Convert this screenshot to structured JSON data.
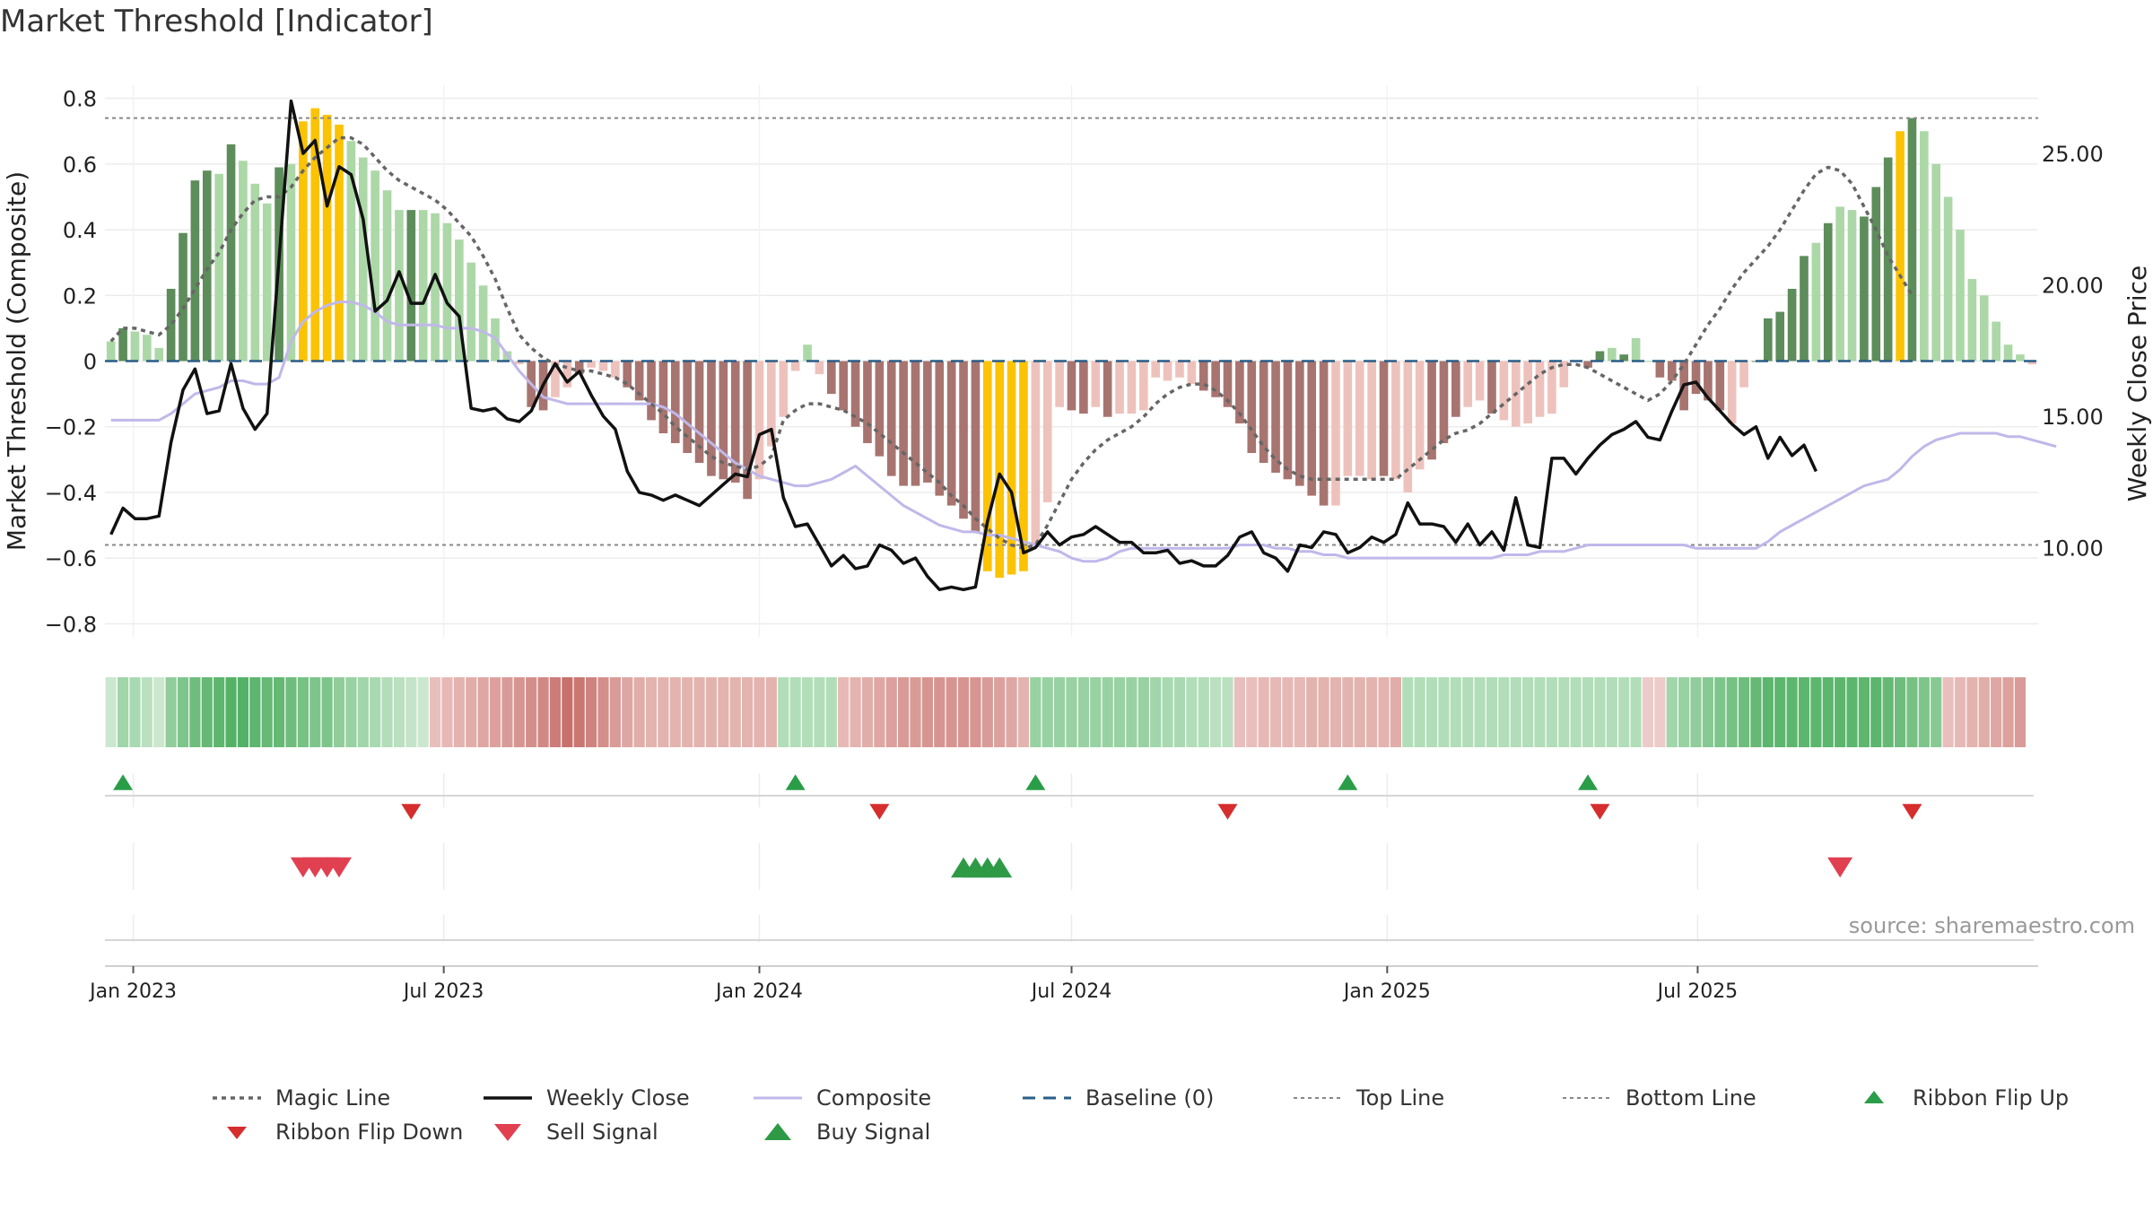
{
  "title": "Market Threshold [Indicator]",
  "source": "source: sharemaestro.com",
  "colors": {
    "strong_up": "#5d8d5a",
    "weak_up": "#acd8a7",
    "strong_down": "#a87470",
    "weak_down": "#eec2bc",
    "extreme": "#fcc304",
    "magic": "#666666",
    "close": "#111111",
    "composite": "#c0b8ea",
    "baseline": "#2a5d87",
    "ref_line": "#888888",
    "flip_up": "#2a9d48",
    "flip_down": "#d62d2d",
    "sell": "#e04050",
    "buy": "#2e9a46"
  },
  "chart_data": {
    "type": "bar",
    "x_start": "2022-12-19",
    "x_step_days": 7,
    "x_ticks": [
      "Jan 2023",
      "Jul 2023",
      "Jan 2024",
      "Jul 2024",
      "Jan 2025",
      "Jul 2025"
    ],
    "x_tick_dates": [
      "2023-01-01",
      "2023-07-01",
      "2024-01-01",
      "2024-07-01",
      "2025-01-01",
      "2025-07-01"
    ],
    "y_left": {
      "label": "Market Threshold (Composite)",
      "range": [
        -0.84,
        0.84
      ],
      "ticks": [
        0.8,
        0.6,
        0.4,
        0.2,
        0,
        -0.2,
        -0.4,
        -0.6,
        -0.8
      ],
      "tick_labels": [
        "0.8",
        "0.6",
        "0.4",
        "0.2",
        "0",
        "−0.2",
        "−0.4",
        "−0.6",
        "−0.8"
      ]
    },
    "y_right": {
      "label": "Weekly Close Price",
      "range": [
        6.6,
        27.6
      ],
      "ticks": [
        25,
        20,
        15,
        10
      ],
      "tick_labels": [
        "25.00",
        "20.00",
        "15.00",
        "10.00"
      ]
    },
    "top_line": 0.74,
    "bottom_line": -0.56,
    "baseline": 0,
    "bars": [
      0.06,
      0.1,
      0.09,
      0.08,
      0.04,
      0.22,
      0.39,
      0.55,
      0.58,
      0.57,
      0.66,
      0.61,
      0.54,
      0.48,
      0.59,
      0.6,
      0.73,
      0.77,
      0.75,
      0.72,
      0.67,
      0.62,
      0.58,
      0.52,
      0.46,
      0.46,
      0.46,
      0.45,
      0.42,
      0.37,
      0.3,
      0.23,
      0.13,
      0.03,
      -0.01,
      -0.14,
      -0.15,
      -0.11,
      -0.08,
      -0.04,
      -0.02,
      -0.03,
      -0.05,
      -0.08,
      -0.12,
      -0.18,
      -0.22,
      -0.25,
      -0.28,
      -0.31,
      -0.35,
      -0.36,
      -0.37,
      -0.42,
      -0.36,
      -0.26,
      -0.17,
      -0.03,
      0.05,
      -0.04,
      -0.1,
      -0.15,
      -0.2,
      -0.25,
      -0.29,
      -0.35,
      -0.38,
      -0.38,
      -0.37,
      -0.41,
      -0.44,
      -0.48,
      -0.52,
      -0.64,
      -0.66,
      -0.65,
      -0.64,
      -0.56,
      -0.43,
      -0.14,
      -0.15,
      -0.16,
      -0.14,
      -0.17,
      -0.16,
      -0.16,
      -0.15,
      -0.05,
      -0.06,
      -0.05,
      -0.07,
      -0.09,
      -0.11,
      -0.14,
      -0.19,
      -0.28,
      -0.31,
      -0.34,
      -0.36,
      -0.38,
      -0.41,
      -0.44,
      -0.44,
      -0.35,
      -0.35,
      -0.36,
      -0.35,
      -0.36,
      -0.4,
      -0.33,
      -0.3,
      -0.25,
      -0.17,
      -0.14,
      -0.12,
      -0.16,
      -0.18,
      -0.2,
      -0.19,
      -0.17,
      -0.16,
      -0.08,
      0.0,
      -0.02,
      0.03,
      0.04,
      0.02,
      0.07,
      0.0,
      -0.05,
      -0.06,
      -0.15,
      -0.1,
      -0.12,
      -0.15,
      -0.19,
      -0.08,
      0.0,
      0.13,
      0.15,
      0.22,
      0.32,
      0.36,
      0.42,
      0.47,
      0.46,
      0.44,
      0.53,
      0.62,
      0.7,
      0.74,
      0.7,
      0.6,
      0.5,
      0.4,
      0.25,
      0.2,
      0.12,
      0.05,
      0.02,
      -0.01
    ],
    "bar_kinds": [
      "w",
      "s",
      "w",
      "w",
      "w",
      "s",
      "s",
      "s",
      "s",
      "w",
      "s",
      "w",
      "w",
      "w",
      "s",
      "w",
      "e",
      "e",
      "e",
      "e",
      "w",
      "w",
      "w",
      "w",
      "w",
      "s",
      "w",
      "w",
      "w",
      "w",
      "w",
      "w",
      "w",
      "w",
      "w",
      "s",
      "s",
      "w",
      "w",
      "s",
      "w",
      "w",
      "w",
      "s",
      "s",
      "s",
      "s",
      "s",
      "s",
      "s",
      "s",
      "s",
      "s",
      "s",
      "w",
      "w",
      "w",
      "w",
      "w",
      "w",
      "s",
      "s",
      "s",
      "s",
      "s",
      "s",
      "s",
      "s",
      "s",
      "s",
      "s",
      "s",
      "s",
      "e",
      "e",
      "e",
      "e",
      "w",
      "w",
      "w",
      "s",
      "s",
      "w",
      "s",
      "w",
      "w",
      "w",
      "w",
      "w",
      "w",
      "w",
      "s",
      "s",
      "s",
      "s",
      "s",
      "s",
      "s",
      "s",
      "s",
      "s",
      "s",
      "w",
      "w",
      "w",
      "w",
      "s",
      "w",
      "w",
      "w",
      "s",
      "s",
      "s",
      "w",
      "w",
      "s",
      "w",
      "w",
      "w",
      "w",
      "w",
      "w",
      "w",
      "s",
      "s",
      "w",
      "s",
      "w",
      "w",
      "s",
      "s",
      "s",
      "s",
      "s",
      "s",
      "w",
      "w",
      "s",
      "s",
      "s",
      "s",
      "s",
      "w",
      "s",
      "w",
      "w",
      "s",
      "s",
      "s",
      "e",
      "s",
      "w",
      "w",
      "w",
      "w",
      "w",
      "w",
      "w",
      "w",
      "w"
    ],
    "composite": [
      -0.18,
      -0.18,
      -0.18,
      -0.18,
      -0.18,
      -0.16,
      -0.13,
      -0.1,
      -0.09,
      -0.08,
      -0.06,
      -0.06,
      -0.07,
      -0.07,
      -0.05,
      0.06,
      0.12,
      0.15,
      0.17,
      0.18,
      0.18,
      0.17,
      0.15,
      0.12,
      0.11,
      0.11,
      0.11,
      0.11,
      0.1,
      0.1,
      0.1,
      0.09,
      0.07,
      0.02,
      -0.03,
      -0.07,
      -0.11,
      -0.12,
      -0.13,
      -0.13,
      -0.13,
      -0.13,
      -0.13,
      -0.13,
      -0.13,
      -0.13,
      -0.14,
      -0.16,
      -0.19,
      -0.22,
      -0.25,
      -0.28,
      -0.31,
      -0.33,
      -0.35,
      -0.36,
      -0.37,
      -0.38,
      -0.38,
      -0.37,
      -0.36,
      -0.34,
      -0.32,
      -0.35,
      -0.38,
      -0.41,
      -0.44,
      -0.46,
      -0.48,
      -0.5,
      -0.51,
      -0.52,
      -0.52,
      -0.53,
      -0.53,
      -0.54,
      -0.55,
      -0.56,
      -0.57,
      -0.58,
      -0.6,
      -0.61,
      -0.61,
      -0.6,
      -0.58,
      -0.57,
      -0.57,
      -0.57,
      -0.57,
      -0.57,
      -0.57,
      -0.57,
      -0.57,
      -0.57,
      -0.56,
      -0.56,
      -0.56,
      -0.57,
      -0.57,
      -0.58,
      -0.58,
      -0.59,
      -0.59,
      -0.6,
      -0.6,
      -0.6,
      -0.6,
      -0.6,
      -0.6,
      -0.6,
      -0.6,
      -0.6,
      -0.6,
      -0.6,
      -0.6,
      -0.6,
      -0.59,
      -0.59,
      -0.59,
      -0.58,
      -0.58,
      -0.58,
      -0.57,
      -0.56,
      -0.56,
      -0.56,
      -0.56,
      -0.56,
      -0.56,
      -0.56,
      -0.56,
      -0.56,
      -0.57,
      -0.57,
      -0.57,
      -0.57,
      -0.57,
      -0.57,
      -0.55,
      -0.52,
      -0.5,
      -0.48,
      -0.46,
      -0.44,
      -0.42,
      -0.4,
      -0.38,
      -0.37,
      -0.36,
      -0.33,
      -0.29,
      -0.26,
      -0.24,
      -0.23,
      -0.22,
      -0.22,
      -0.22,
      -0.22,
      -0.23,
      -0.23,
      -0.24,
      -0.25,
      -0.26
    ],
    "magic": [
      0.06,
      0.1,
      0.1,
      0.09,
      0.08,
      0.11,
      0.16,
      0.22,
      0.28,
      0.33,
      0.4,
      0.45,
      0.49,
      0.5,
      0.5,
      0.53,
      0.58,
      0.62,
      0.65,
      0.68,
      0.68,
      0.66,
      0.62,
      0.58,
      0.55,
      0.53,
      0.51,
      0.49,
      0.46,
      0.42,
      0.38,
      0.32,
      0.25,
      0.16,
      0.08,
      0.04,
      0.01,
      -0.01,
      -0.02,
      -0.03,
      -0.03,
      -0.04,
      -0.05,
      -0.07,
      -0.1,
      -0.13,
      -0.16,
      -0.2,
      -0.23,
      -0.26,
      -0.29,
      -0.31,
      -0.32,
      -0.33,
      -0.32,
      -0.29,
      -0.18,
      -0.15,
      -0.13,
      -0.13,
      -0.14,
      -0.15,
      -0.17,
      -0.19,
      -0.22,
      -0.25,
      -0.28,
      -0.31,
      -0.34,
      -0.37,
      -0.41,
      -0.44,
      -0.48,
      -0.51,
      -0.54,
      -0.56,
      -0.57,
      -0.56,
      -0.5,
      -0.43,
      -0.36,
      -0.31,
      -0.27,
      -0.24,
      -0.22,
      -0.2,
      -0.17,
      -0.13,
      -0.1,
      -0.08,
      -0.07,
      -0.07,
      -0.09,
      -0.12,
      -0.16,
      -0.21,
      -0.26,
      -0.3,
      -0.33,
      -0.35,
      -0.36,
      -0.36,
      -0.36,
      -0.36,
      -0.36,
      -0.36,
      -0.36,
      -0.36,
      -0.33,
      -0.3,
      -0.27,
      -0.24,
      -0.22,
      -0.21,
      -0.19,
      -0.16,
      -0.13,
      -0.1,
      -0.07,
      -0.04,
      -0.02,
      -0.01,
      -0.01,
      -0.02,
      -0.04,
      -0.06,
      -0.08,
      -0.1,
      -0.12,
      -0.1,
      -0.06,
      -0.01,
      0.05,
      0.11,
      0.16,
      0.22,
      0.27,
      0.31,
      0.35,
      0.4,
      0.46,
      0.52,
      0.57,
      0.59,
      0.58,
      0.54,
      0.47,
      0.4,
      0.32,
      0.26,
      0.2
    ],
    "close": [
      10.5,
      11.5,
      11.1,
      11.1,
      11.2,
      14.0,
      16.0,
      16.8,
      15.1,
      15.2,
      17.0,
      15.3,
      14.5,
      15.1,
      21.0,
      27.0,
      25.0,
      25.5,
      23.0,
      24.5,
      24.2,
      22.5,
      19.0,
      19.4,
      20.5,
      19.3,
      19.3,
      20.4,
      19.3,
      18.8,
      15.3,
      15.2,
      15.3,
      14.9,
      14.8,
      15.2,
      16.2,
      17.0,
      16.3,
      16.7,
      15.8,
      15.0,
      14.5,
      12.9,
      12.1,
      12.0,
      11.8,
      12.0,
      11.8,
      11.6,
      12.0,
      12.4,
      12.8,
      12.7,
      14.3,
      14.5,
      11.9,
      10.8,
      10.9,
      10.1,
      9.3,
      9.7,
      9.2,
      9.3,
      10.1,
      9.9,
      9.4,
      9.6,
      8.9,
      8.4,
      8.5,
      8.4,
      8.5,
      11.0,
      12.8,
      12.1,
      9.8,
      10.0,
      10.6,
      10.1,
      10.4,
      10.5,
      10.8,
      10.5,
      10.2,
      10.2,
      9.8,
      9.8,
      9.9,
      9.4,
      9.5,
      9.3,
      9.3,
      9.7,
      10.4,
      10.6,
      9.8,
      9.6,
      9.1,
      10.1,
      10.0,
      10.6,
      10.5,
      9.8,
      10.0,
      10.4,
      10.2,
      10.5,
      11.7,
      10.9,
      10.9,
      10.8,
      10.2,
      10.9,
      10.1,
      10.6,
      9.9,
      11.9,
      10.1,
      10.0,
      13.4,
      13.4,
      12.8,
      13.4,
      13.9,
      14.3,
      14.5,
      14.8,
      14.2,
      14.1,
      15.2,
      16.2,
      16.3,
      15.7,
      15.2,
      14.7,
      14.3,
      14.6,
      13.4,
      14.2,
      13.5,
      13.9,
      12.9
    ],
    "ribbon": [
      0.1,
      0.35,
      0.3,
      0.2,
      0.1,
      0.45,
      0.55,
      0.65,
      0.7,
      0.75,
      0.8,
      0.8,
      0.75,
      0.7,
      0.7,
      0.65,
      0.6,
      0.55,
      0.55,
      0.45,
      0.4,
      0.35,
      0.3,
      0.25,
      0.2,
      0.15,
      0.1,
      -0.2,
      -0.25,
      -0.3,
      -0.35,
      -0.4,
      -0.45,
      -0.5,
      -0.55,
      -0.6,
      -0.65,
      -0.75,
      -0.85,
      -0.8,
      -0.7,
      -0.6,
      -0.5,
      -0.4,
      -0.35,
      -0.3,
      -0.3,
      -0.3,
      -0.3,
      -0.3,
      -0.3,
      -0.3,
      -0.3,
      -0.3,
      -0.3,
      -0.3,
      0.25,
      0.25,
      0.25,
      0.25,
      0.25,
      -0.25,
      -0.3,
      -0.35,
      -0.4,
      -0.45,
      -0.5,
      -0.5,
      -0.55,
      -0.55,
      -0.55,
      -0.55,
      -0.55,
      -0.5,
      -0.45,
      -0.4,
      -0.3,
      0.4,
      0.4,
      0.4,
      0.4,
      0.4,
      0.4,
      0.4,
      0.4,
      0.4,
      0.4,
      0.35,
      0.3,
      0.3,
      0.25,
      0.25,
      0.2,
      0.2,
      -0.2,
      -0.2,
      -0.25,
      -0.25,
      -0.25,
      -0.25,
      -0.3,
      -0.3,
      -0.3,
      -0.3,
      -0.3,
      -0.3,
      -0.3,
      -0.35,
      0.25,
      0.25,
      0.25,
      0.25,
      0.25,
      0.25,
      0.25,
      0.25,
      0.25,
      0.25,
      0.25,
      0.25,
      0.25,
      0.25,
      0.25,
      0.25,
      0.25,
      0.25,
      0.25,
      0.25,
      -0.1,
      -0.1,
      0.35,
      0.4,
      0.45,
      0.5,
      0.55,
      0.6,
      0.65,
      0.7,
      0.75,
      0.75,
      0.75,
      0.75,
      0.75,
      0.75,
      0.75,
      0.75,
      0.75,
      0.75,
      0.7,
      0.65,
      0.6,
      0.55,
      0.5,
      -0.2,
      -0.25,
      -0.3,
      -0.35,
      -0.4,
      -0.45,
      -0.5
    ],
    "flip_up_at": [
      1,
      57,
      77,
      103,
      123
    ],
    "flip_down_at": [
      25,
      64,
      93,
      124,
      150
    ],
    "sell_at": [
      16,
      17,
      18,
      19,
      144
    ],
    "buy_at": [
      71,
      72,
      73,
      74
    ]
  },
  "legend": [
    {
      "label": "Magic Line",
      "kind": "dotted",
      "color": "#666666"
    },
    {
      "label": "Weekly Close",
      "kind": "solid",
      "color": "#111111"
    },
    {
      "label": "Composite",
      "kind": "solid-thin",
      "color": "#c0b8ea"
    },
    {
      "label": "Baseline (0)",
      "kind": "dashed",
      "color": "#2a5d87"
    },
    {
      "label": "Top Line",
      "kind": "dotted-thin",
      "color": "#888888"
    },
    {
      "label": "Bottom Line",
      "kind": "dotted-thin",
      "color": "#888888"
    },
    {
      "label": "Ribbon Flip Up",
      "kind": "tri-up",
      "color": "#2a9d48"
    },
    {
      "label": "Ribbon Flip Down",
      "kind": "tri-down",
      "color": "#d62d2d"
    },
    {
      "label": "Sell Signal",
      "kind": "tri-down-big",
      "color": "#e04050"
    },
    {
      "label": "Buy Signal",
      "kind": "tri-up-big",
      "color": "#2e9a46"
    }
  ]
}
